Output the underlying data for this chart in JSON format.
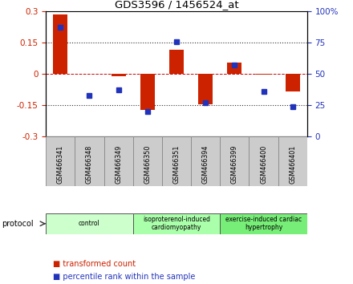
{
  "title": "GDS3596 / 1456524_at",
  "samples": [
    "GSM466341",
    "GSM466348",
    "GSM466349",
    "GSM466350",
    "GSM466351",
    "GSM466394",
    "GSM466399",
    "GSM466400",
    "GSM466401"
  ],
  "transformed_count": [
    0.285,
    0.0,
    -0.01,
    -0.175,
    0.115,
    -0.145,
    0.055,
    -0.005,
    -0.085
  ],
  "percentile_rank": [
    87,
    33,
    37,
    20,
    76,
    27,
    57,
    36,
    24
  ],
  "ylim_left": [
    -0.3,
    0.3
  ],
  "ylim_right": [
    0,
    100
  ],
  "yticks_left": [
    -0.3,
    -0.15,
    0.0,
    0.15,
    0.3
  ],
  "yticks_right": [
    0,
    25,
    50,
    75,
    100
  ],
  "ytick_labels_left": [
    "-0.3",
    "-0.15",
    "0",
    "0.15",
    "0.3"
  ],
  "ytick_labels_right": [
    "0",
    "25",
    "50",
    "75",
    "100%"
  ],
  "hlines_dotted": [
    -0.15,
    0.15
  ],
  "hline_dashed": 0.0,
  "bar_color": "#cc2200",
  "dot_color": "#2233bb",
  "groups": [
    {
      "label": "control",
      "start": 0,
      "end": 3,
      "color": "#ccffcc"
    },
    {
      "label": "isoproterenol-induced\ncardiomyopathy",
      "start": 3,
      "end": 6,
      "color": "#aaffaa"
    },
    {
      "label": "exercise-induced cardiac\nhypertrophy",
      "start": 6,
      "end": 9,
      "color": "#77ee77"
    }
  ],
  "protocol_label": "protocol",
  "legend_items": [
    {
      "color": "#cc2200",
      "label": "transformed count"
    },
    {
      "color": "#2233bb",
      "label": "percentile rank within the sample"
    }
  ],
  "background_color": "#ffffff",
  "sample_box_color": "#cccccc",
  "sample_box_edge": "#888888"
}
